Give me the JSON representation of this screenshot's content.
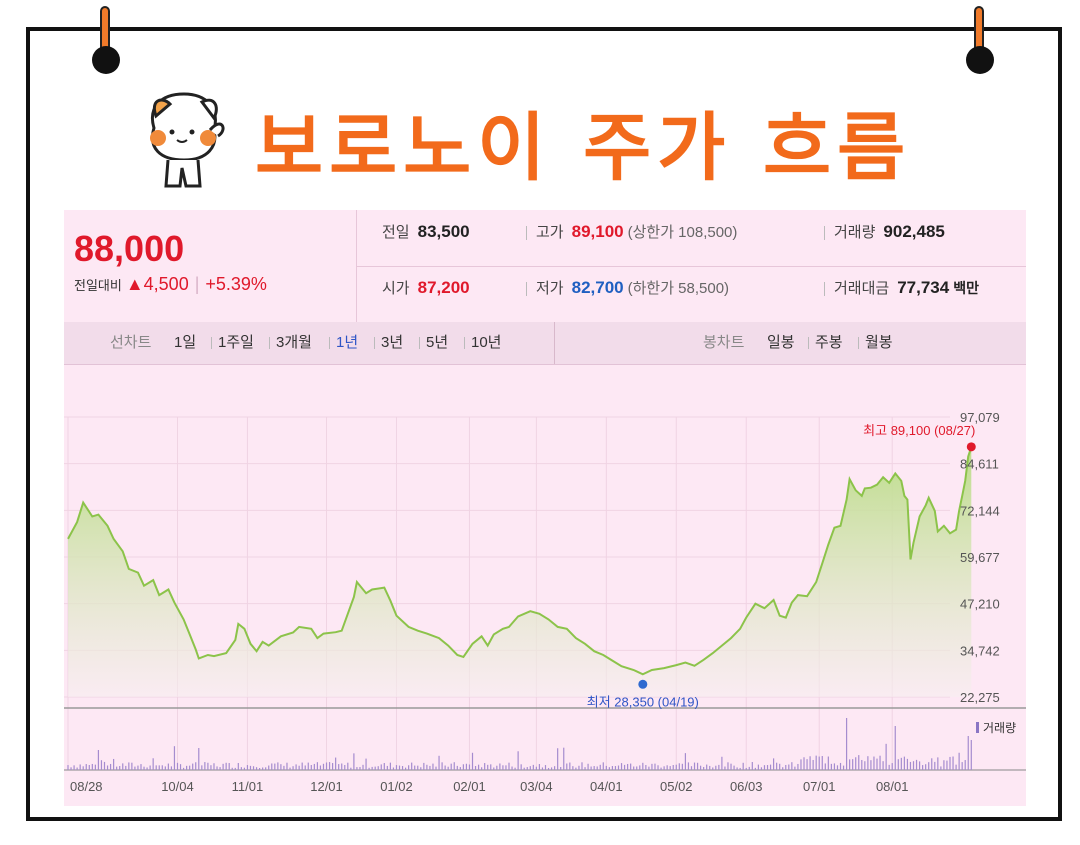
{
  "title": "보로노이 주가 흐름",
  "quote": {
    "price": "88,000",
    "change_label": "전일대비",
    "change_value": "▲4,500",
    "change_pct": "+5.39%",
    "prev": {
      "label": "전일",
      "value": "83,500"
    },
    "high": {
      "label": "고가",
      "value": "89,100",
      "sub": "(상한가 108,500)"
    },
    "volume": {
      "label": "거래량",
      "value": "902,485"
    },
    "open": {
      "label": "시가",
      "value": "87,200"
    },
    "low": {
      "label": "저가",
      "value": "82,700",
      "sub": "(하한가 58,500)"
    },
    "amount": {
      "label": "거래대금",
      "value": "77,734",
      "unit": "백만"
    }
  },
  "tabs": {
    "line_label": "선차트",
    "line_periods": [
      "1일",
      "1주일",
      "3개월",
      "1년",
      "3년",
      "5년",
      "10년"
    ],
    "active": "1년",
    "candle_label": "봉차트",
    "candle_periods": [
      "일봉",
      "주봉",
      "월봉"
    ]
  },
  "colors": {
    "accent": "#f26a1b",
    "up": "#e0192b",
    "down": "#1f5fc1",
    "line": "#8cc34a"
  },
  "chart_data": {
    "type": "area",
    "y_ticks": [
      "97,079",
      "84,611",
      "72,144",
      "59,677",
      "47,210",
      "34,742",
      "22,275"
    ],
    "ylim": [
      22275,
      97079
    ],
    "x_ticks": [
      "08/28",
      "10/04",
      "11/01",
      "12/01",
      "01/02",
      "02/01",
      "03/04",
      "04/01",
      "05/02",
      "06/03",
      "07/01",
      "08/01"
    ],
    "x_tick_pos": [
      0,
      36,
      59,
      85,
      108,
      132,
      154,
      177,
      200,
      223,
      247,
      271
    ],
    "n_days": 290,
    "values": [
      [
        0,
        64500
      ],
      [
        3,
        69000
      ],
      [
        5,
        74200
      ],
      [
        8,
        70500
      ],
      [
        10,
        71000
      ],
      [
        13,
        68000
      ],
      [
        15,
        64500
      ],
      [
        18,
        61200
      ],
      [
        20,
        56500
      ],
      [
        23,
        55500
      ],
      [
        25,
        52000
      ],
      [
        28,
        53500
      ],
      [
        30,
        49500
      ],
      [
        33,
        51000
      ],
      [
        35,
        47500
      ],
      [
        38,
        43000
      ],
      [
        40,
        39000
      ],
      [
        42,
        35000
      ],
      [
        43,
        32600
      ],
      [
        46,
        33500
      ],
      [
        48,
        33200
      ],
      [
        52,
        34000
      ],
      [
        55,
        37500
      ],
      [
        56,
        41800
      ],
      [
        58,
        40500
      ],
      [
        60,
        36500
      ],
      [
        62,
        34500
      ],
      [
        64,
        37000
      ],
      [
        66,
        36000
      ],
      [
        70,
        38500
      ],
      [
        74,
        39500
      ],
      [
        76,
        41000
      ],
      [
        80,
        40500
      ],
      [
        82,
        38000
      ],
      [
        84,
        39200
      ],
      [
        88,
        39600
      ],
      [
        90,
        40000
      ],
      [
        92,
        44500
      ],
      [
        94,
        49000
      ],
      [
        95,
        53000
      ],
      [
        98,
        50000
      ],
      [
        100,
        51000
      ],
      [
        104,
        51500
      ],
      [
        106,
        48000
      ],
      [
        108,
        44000
      ],
      [
        112,
        41000
      ],
      [
        115,
        40000
      ],
      [
        118,
        39200
      ],
      [
        122,
        38000
      ],
      [
        125,
        36000
      ],
      [
        128,
        33500
      ],
      [
        130,
        33000
      ],
      [
        133,
        36500
      ],
      [
        136,
        38500
      ],
      [
        138,
        36000
      ],
      [
        140,
        39000
      ],
      [
        143,
        40500
      ],
      [
        145,
        41000
      ],
      [
        148,
        43800
      ],
      [
        152,
        45200
      ],
      [
        155,
        44500
      ],
      [
        158,
        43000
      ],
      [
        161,
        41000
      ],
      [
        164,
        40500
      ],
      [
        167,
        38000
      ],
      [
        170,
        36500
      ],
      [
        173,
        34500
      ],
      [
        176,
        33500
      ],
      [
        179,
        32000
      ],
      [
        182,
        30500
      ],
      [
        186,
        29500
      ],
      [
        189,
        28350
      ],
      [
        192,
        29500
      ],
      [
        196,
        30000
      ],
      [
        200,
        30800
      ],
      [
        203,
        31500
      ],
      [
        206,
        30600
      ],
      [
        209,
        32200
      ],
      [
        212,
        34000
      ],
      [
        215,
        36000
      ],
      [
        218,
        38000
      ],
      [
        221,
        40500
      ],
      [
        223,
        43500
      ],
      [
        226,
        47200
      ],
      [
        229,
        46000
      ],
      [
        232,
        48200
      ],
      [
        234,
        44000
      ],
      [
        236,
        43500
      ],
      [
        238,
        47500
      ],
      [
        240,
        49500
      ],
      [
        243,
        49200
      ],
      [
        246,
        53000
      ],
      [
        248,
        58000
      ],
      [
        250,
        63000
      ],
      [
        252,
        67500
      ],
      [
        254,
        68000
      ],
      [
        256,
        75000
      ],
      [
        257,
        80500
      ],
      [
        259,
        77500
      ],
      [
        261,
        76000
      ],
      [
        262,
        78000
      ],
      [
        264,
        78200
      ],
      [
        266,
        79000
      ],
      [
        268,
        81000
      ],
      [
        270,
        79500
      ],
      [
        272,
        82000
      ],
      [
        274,
        80000
      ],
      [
        275,
        76000
      ],
      [
        276,
        75000
      ],
      [
        277,
        59000
      ],
      [
        278,
        63500
      ],
      [
        280,
        70500
      ],
      [
        282,
        73500
      ],
      [
        283,
        75500
      ],
      [
        285,
        72000
      ],
      [
        286,
        66500
      ],
      [
        288,
        68000
      ],
      [
        290,
        66000
      ],
      [
        292,
        67000
      ],
      [
        293,
        72000
      ],
      [
        294,
        76000
      ],
      [
        295,
        80000
      ],
      [
        296,
        86500
      ],
      [
        297,
        89100
      ]
    ],
    "volume_label": "거래량",
    "max_label": "최고 89,100 (08/27)",
    "min_label": "최저 28,350 (04/19)",
    "max_point": [
      297,
      89100
    ],
    "min_point": [
      189,
      28350
    ]
  }
}
